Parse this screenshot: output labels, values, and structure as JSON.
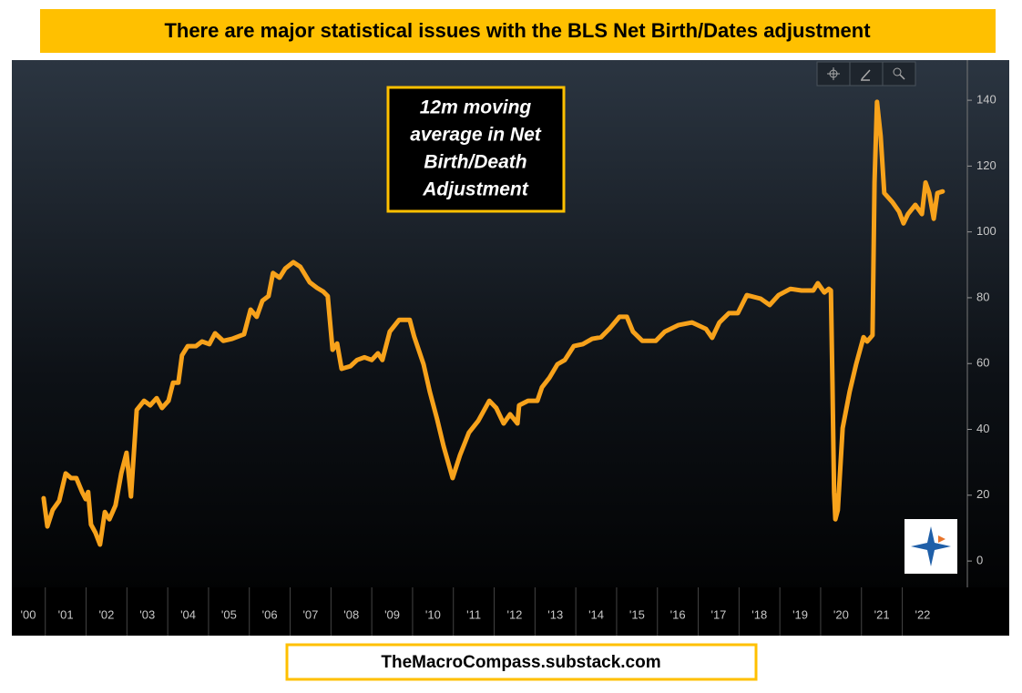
{
  "chart_data": {
    "type": "line",
    "title": "There are major statistical issues with the BLS Net Birth/Dates adjustment",
    "annotation": [
      "12m moving",
      "average in Net",
      "Birth/Death",
      "Adjustment"
    ],
    "footer": "TheMacroCompass.substack.com",
    "color": "#f7a21b",
    "x": [
      2000.96,
      2001.05,
      2001.18,
      2001.34,
      2001.5,
      2001.63,
      2001.76,
      2001.9,
      2001.99,
      2002.05,
      2002.12,
      2002.23,
      2002.34,
      2002.46,
      2002.57,
      2002.72,
      2002.86,
      2002.99,
      2003.1,
      2003.24,
      2003.42,
      2003.57,
      2003.73,
      2003.86,
      2004.02,
      2004.13,
      2004.26,
      2004.35,
      2004.49,
      2004.69,
      2004.84,
      2005.02,
      2005.16,
      2005.36,
      2005.58,
      2005.87,
      2006.03,
      2006.18,
      2006.32,
      2006.47,
      2006.58,
      2006.74,
      2006.88,
      2007.08,
      2007.25,
      2007.48,
      2007.66,
      2007.81,
      2007.92,
      2008.04,
      2008.15,
      2008.26,
      2008.48,
      2008.64,
      2008.82,
      2009.0,
      2009.15,
      2009.26,
      2009.44,
      2009.67,
      2009.93,
      2010.04,
      2010.27,
      2010.42,
      2010.6,
      2010.76,
      2010.98,
      2011.16,
      2011.38,
      2011.61,
      2011.88,
      2012.05,
      2012.23,
      2012.39,
      2012.57,
      2012.61,
      2012.83,
      2013.06,
      2013.17,
      2013.35,
      2013.55,
      2013.73,
      2013.95,
      2014.17,
      2014.4,
      2014.62,
      2014.84,
      2015.07,
      2015.25,
      2015.4,
      2015.63,
      2015.96,
      2016.18,
      2016.52,
      2016.85,
      2017.19,
      2017.34,
      2017.52,
      2017.75,
      2017.97,
      2018.19,
      2018.53,
      2018.75,
      2018.97,
      2019.26,
      2019.53,
      2019.82,
      2019.93,
      2020.09,
      2020.2,
      2020.25,
      2020.29,
      2020.33,
      2020.36,
      2020.42,
      2020.54,
      2020.71,
      2020.87,
      2021.05,
      2021.14,
      2021.27,
      2021.32,
      2021.38,
      2021.47,
      2021.56,
      2021.76,
      2021.92,
      2022.03,
      2022.14,
      2022.32,
      2022.48,
      2022.57,
      2022.66,
      2022.77,
      2022.86,
      2022.99
    ],
    "values": [
      19.1,
      10.5,
      15.5,
      18.3,
      26.6,
      25.2,
      25.2,
      21.0,
      18.8,
      21.0,
      11.1,
      8.6,
      5.0,
      14.9,
      12.7,
      16.9,
      26.6,
      32.9,
      19.6,
      45.9,
      48.7,
      47.3,
      49.5,
      46.5,
      48.7,
      54.2,
      54.2,
      62.5,
      65.3,
      65.3,
      66.7,
      65.9,
      69.2,
      66.9,
      67.5,
      68.9,
      76.4,
      74.2,
      79.1,
      80.5,
      87.5,
      86.1,
      88.9,
      90.8,
      89.4,
      84.7,
      83.0,
      81.9,
      80.5,
      64.2,
      66.1,
      58.4,
      59.2,
      61.1,
      61.9,
      61.1,
      63.1,
      61.1,
      69.7,
      73.3,
      73.3,
      68.2,
      59.8,
      51.5,
      43.2,
      34.9,
      25.2,
      32.1,
      39.0,
      42.6,
      48.7,
      46.5,
      41.8,
      44.6,
      41.8,
      47.3,
      48.7,
      48.7,
      52.8,
      55.6,
      59.8,
      61.1,
      65.3,
      65.9,
      67.5,
      68.0,
      70.8,
      74.2,
      74.2,
      69.7,
      66.9,
      66.9,
      69.7,
      71.7,
      72.5,
      70.5,
      67.8,
      72.5,
      75.3,
      75.3,
      80.8,
      79.7,
      77.8,
      80.8,
      82.7,
      82.2,
      82.2,
      84.4,
      81.6,
      82.7,
      82.2,
      54.2,
      21.0,
      12.7,
      15.5,
      40.4,
      51.5,
      59.8,
      68.0,
      66.7,
      68.6,
      115.0,
      139.5,
      129.2,
      111.8,
      109.0,
      106.2,
      102.6,
      105.4,
      108.2,
      105.4,
      115.0,
      111.8,
      104.0,
      111.8,
      112.3
    ],
    "xlim": [
      2000.18,
      2023.55
    ],
    "xticks": [
      {
        "value": 2000,
        "label": "'00"
      },
      {
        "value": 2001,
        "label": "'01"
      },
      {
        "value": 2002,
        "label": "'02"
      },
      {
        "value": 2003,
        "label": "'03"
      },
      {
        "value": 2004,
        "label": "'04"
      },
      {
        "value": 2005,
        "label": "'05"
      },
      {
        "value": 2006,
        "label": "'06"
      },
      {
        "value": 2007,
        "label": "'07"
      },
      {
        "value": 2008,
        "label": "'08"
      },
      {
        "value": 2009,
        "label": "'09"
      },
      {
        "value": 2010,
        "label": "'10"
      },
      {
        "value": 2011,
        "label": "'11"
      },
      {
        "value": 2012,
        "label": "'12"
      },
      {
        "value": 2013,
        "label": "'13"
      },
      {
        "value": 2014,
        "label": "'14"
      },
      {
        "value": 2015,
        "label": "'15"
      },
      {
        "value": 2016,
        "label": "'16"
      },
      {
        "value": 2017,
        "label": "'17"
      },
      {
        "value": 2018,
        "label": "'18"
      },
      {
        "value": 2019,
        "label": "'19"
      },
      {
        "value": 2020,
        "label": "'20"
      },
      {
        "value": 2021,
        "label": "'21"
      },
      {
        "value": 2022,
        "label": "'22"
      }
    ],
    "ylim": [
      -8,
      152.2
    ],
    "yticks": [
      0,
      20,
      40,
      60,
      80,
      100,
      120,
      140
    ]
  }
}
